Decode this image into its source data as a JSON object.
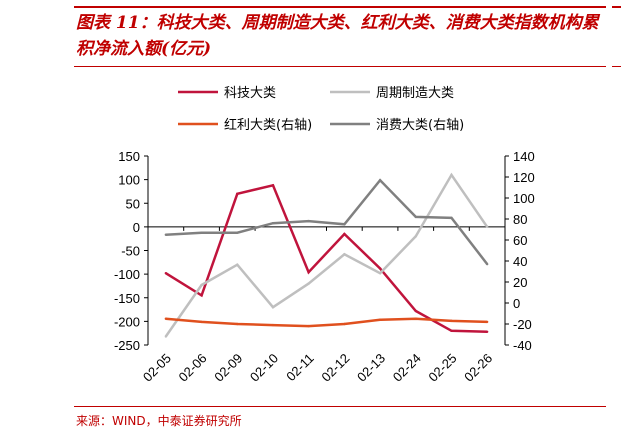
{
  "title": "图表 11：科技大类、周期制造大类、红利大类、消费大类指数机构累积净流入额(亿元)",
  "source": "来源：WIND，中泰证券研究所",
  "chart_data": {
    "type": "line",
    "categories": [
      "02-05",
      "02-06",
      "02-09",
      "02-10",
      "02-11",
      "02-12",
      "02-13",
      "02-24",
      "02-25",
      "02-26"
    ],
    "legend_placement": "top",
    "grid": false,
    "y_left": {
      "ylim": [
        -250,
        150
      ],
      "ticks": [
        150,
        100,
        50,
        0,
        -50,
        -100,
        -150,
        -200,
        -250
      ]
    },
    "y_right": {
      "ylim": [
        -40,
        140
      ],
      "ticks": [
        140,
        120,
        100,
        80,
        60,
        40,
        20,
        0,
        -20,
        -40
      ]
    },
    "series": [
      {
        "name": "科技大类",
        "axis": "left",
        "color": "#c0143c",
        "values": [
          -98,
          -145,
          70,
          88,
          -96,
          -15,
          -88,
          -178,
          -220,
          -222
        ]
      },
      {
        "name": "周期制造大类",
        "axis": "left",
        "color": "#bfbfbf",
        "values": [
          -232,
          -123,
          -80,
          -170,
          -120,
          -58,
          -98,
          -20,
          110,
          0
        ]
      },
      {
        "name": "红利大类(右轴)",
        "axis": "right",
        "color": "#e0501e",
        "values": [
          -15,
          -18,
          -20,
          -21,
          -22,
          -20,
          -16,
          -15,
          -17,
          -18
        ]
      },
      {
        "name": "消费大类(右轴)",
        "axis": "right",
        "color": "#808080",
        "values": [
          65,
          67,
          67,
          76,
          78,
          75,
          117,
          82,
          81,
          37
        ]
      }
    ]
  }
}
